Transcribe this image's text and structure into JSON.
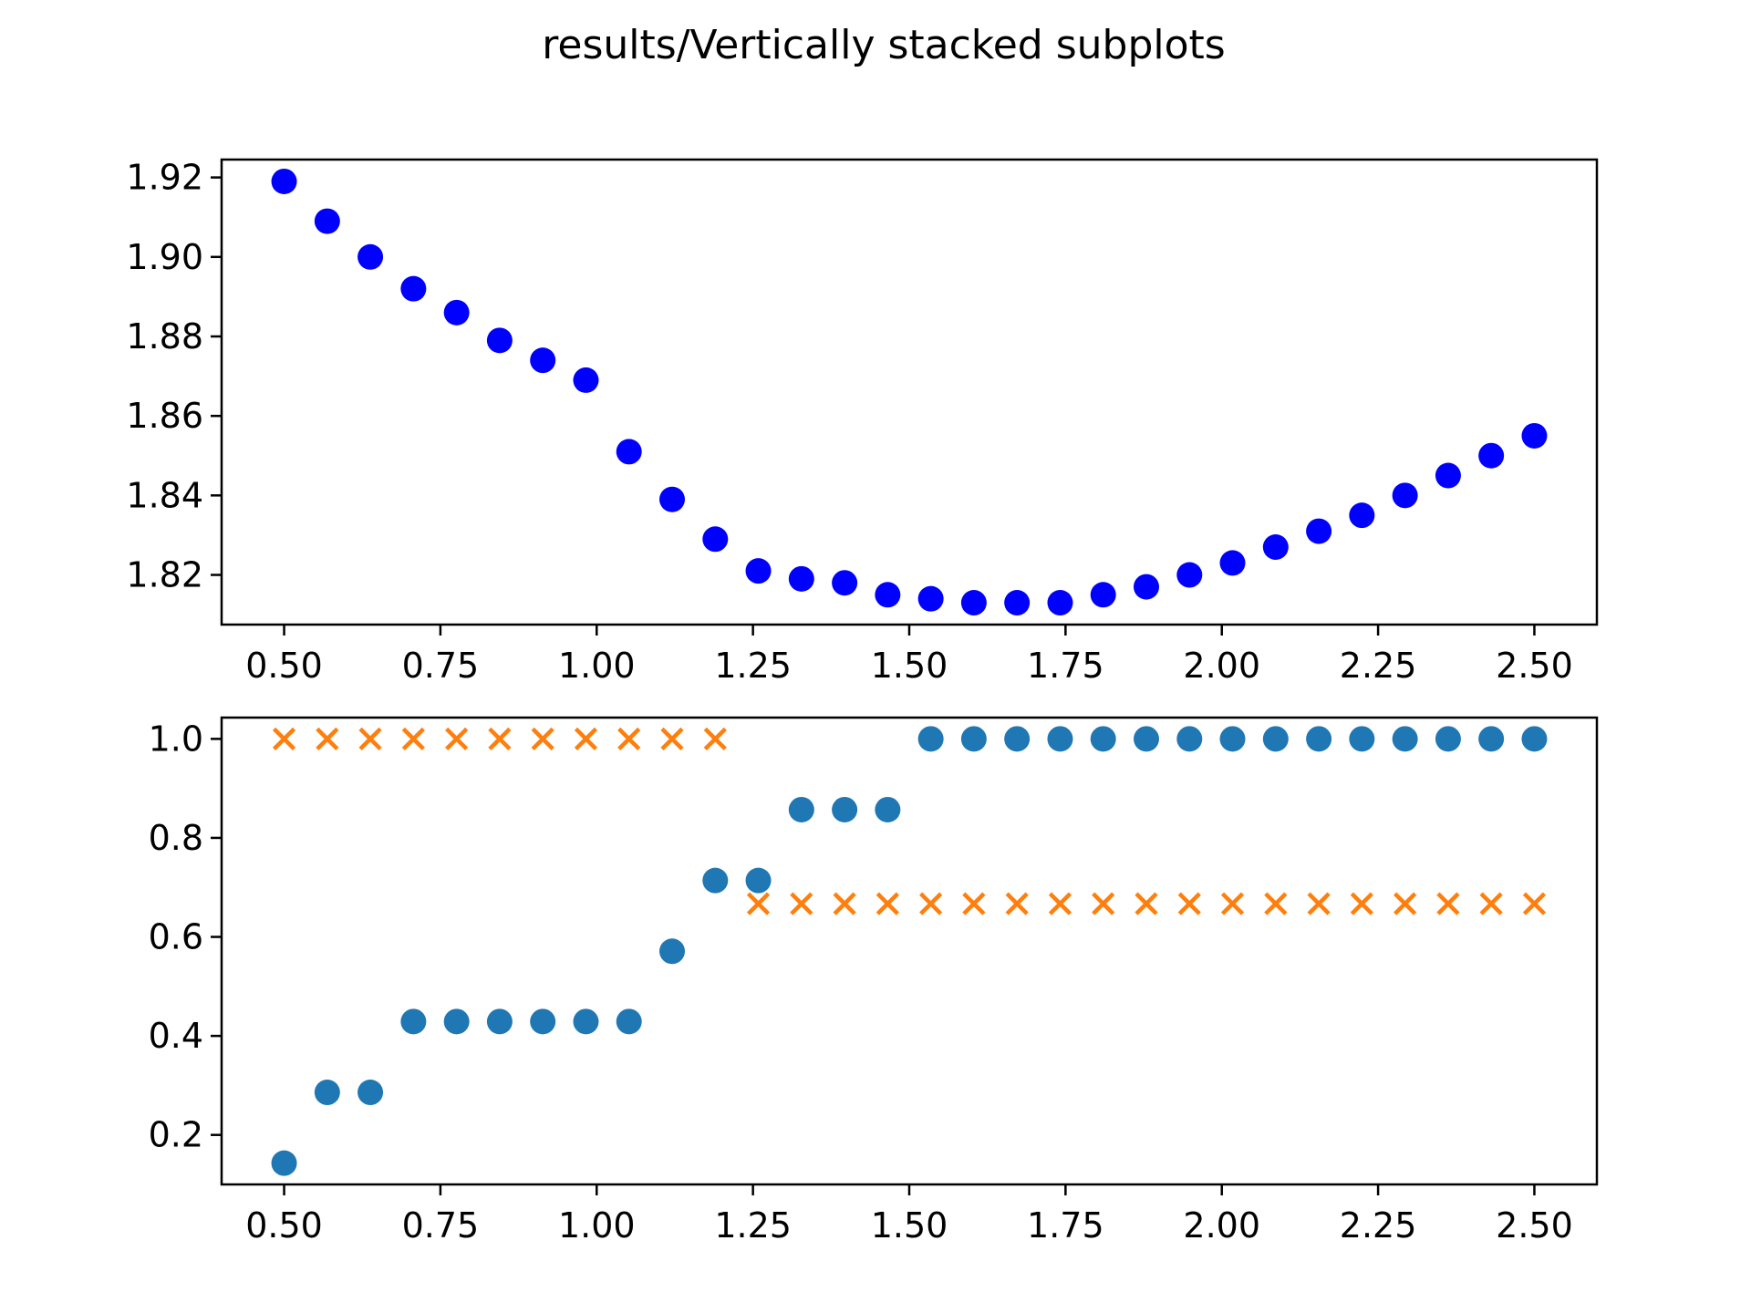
{
  "figure": {
    "suptitle": "results/Vertically stacked subplots"
  },
  "chart_data": [
    {
      "type": "scatter",
      "title": "",
      "xlabel": "",
      "ylabel": "",
      "xlim": [
        0.4,
        2.6
      ],
      "ylim": [
        1.8075,
        1.9245
      ],
      "xticks": [
        0.5,
        0.75,
        1.0,
        1.25,
        1.5,
        1.75,
        2.0,
        2.25,
        2.5
      ],
      "xtick_labels": [
        "0.50",
        "0.75",
        "1.00",
        "1.25",
        "1.50",
        "1.75",
        "2.00",
        "2.25",
        "2.50"
      ],
      "yticks": [
        1.82,
        1.84,
        1.86,
        1.88,
        1.9,
        1.92
      ],
      "ytick_labels": [
        "1.82",
        "1.84",
        "1.86",
        "1.88",
        "1.90",
        "1.92"
      ],
      "grid": false,
      "series": [
        {
          "marker": "circle",
          "color": "#0000ff",
          "x": [
            0.5,
            0.569,
            0.6379,
            0.7069,
            0.7759,
            0.8448,
            0.9138,
            0.9828,
            1.0517,
            1.1207,
            1.1897,
            1.2586,
            1.3276,
            1.3966,
            1.4655,
            1.5345,
            1.6034,
            1.6724,
            1.7414,
            1.8103,
            1.8793,
            1.9483,
            2.0172,
            2.0862,
            2.1552,
            2.2241,
            2.2931,
            2.3621,
            2.431,
            2.5
          ],
          "y": [
            1.919,
            1.909,
            1.9,
            1.892,
            1.886,
            1.879,
            1.874,
            1.869,
            1.851,
            1.839,
            1.829,
            1.821,
            1.819,
            1.818,
            1.815,
            1.814,
            1.813,
            1.813,
            1.813,
            1.815,
            1.817,
            1.82,
            1.823,
            1.827,
            1.831,
            1.835,
            1.84,
            1.845,
            1.85,
            1.855
          ]
        }
      ]
    },
    {
      "type": "scatter",
      "title": "",
      "xlabel": "",
      "ylabel": "",
      "xlim": [
        0.4,
        2.6
      ],
      "ylim": [
        0.1,
        1.043
      ],
      "xticks": [
        0.5,
        0.75,
        1.0,
        1.25,
        1.5,
        1.75,
        2.0,
        2.25,
        2.5
      ],
      "xtick_labels": [
        "0.50",
        "0.75",
        "1.00",
        "1.25",
        "1.50",
        "1.75",
        "2.00",
        "2.25",
        "2.50"
      ],
      "yticks": [
        0.2,
        0.4,
        0.6,
        0.8,
        1.0
      ],
      "ytick_labels": [
        "0.2",
        "0.4",
        "0.6",
        "0.8",
        "1.0"
      ],
      "grid": false,
      "series": [
        {
          "marker": "circle",
          "color": "#1f77b4",
          "x": [
            0.5,
            0.569,
            0.6379,
            0.7069,
            0.7759,
            0.8448,
            0.9138,
            0.9828,
            1.0517,
            1.1207,
            1.1897,
            1.2586,
            1.3276,
            1.3966,
            1.4655,
            1.5345,
            1.6034,
            1.6724,
            1.7414,
            1.8103,
            1.8793,
            1.9483,
            2.0172,
            2.0862,
            2.1552,
            2.2241,
            2.2931,
            2.3621,
            2.431,
            2.5
          ],
          "y": [
            0.143,
            0.286,
            0.286,
            0.429,
            0.429,
            0.429,
            0.429,
            0.429,
            0.429,
            0.571,
            0.714,
            0.714,
            0.857,
            0.857,
            0.857,
            1.0,
            1.0,
            1.0,
            1.0,
            1.0,
            1.0,
            1.0,
            1.0,
            1.0,
            1.0,
            1.0,
            1.0,
            1.0,
            1.0,
            1.0
          ]
        },
        {
          "marker": "x",
          "color": "#ff7f0e",
          "x": [
            0.5,
            0.569,
            0.6379,
            0.7069,
            0.7759,
            0.8448,
            0.9138,
            0.9828,
            1.0517,
            1.1207,
            1.1897,
            1.2586,
            1.3276,
            1.3966,
            1.4655,
            1.5345,
            1.6034,
            1.6724,
            1.7414,
            1.8103,
            1.8793,
            1.9483,
            2.0172,
            2.0862,
            2.1552,
            2.2241,
            2.2931,
            2.3621,
            2.431,
            2.5
          ],
          "y": [
            1.0,
            1.0,
            1.0,
            1.0,
            1.0,
            1.0,
            1.0,
            1.0,
            1.0,
            1.0,
            1.0,
            0.667,
            0.667,
            0.667,
            0.667,
            0.667,
            0.667,
            0.667,
            0.667,
            0.667,
            0.667,
            0.667,
            0.667,
            0.667,
            0.667,
            0.667,
            0.667,
            0.667,
            0.667,
            0.667
          ]
        }
      ]
    }
  ]
}
